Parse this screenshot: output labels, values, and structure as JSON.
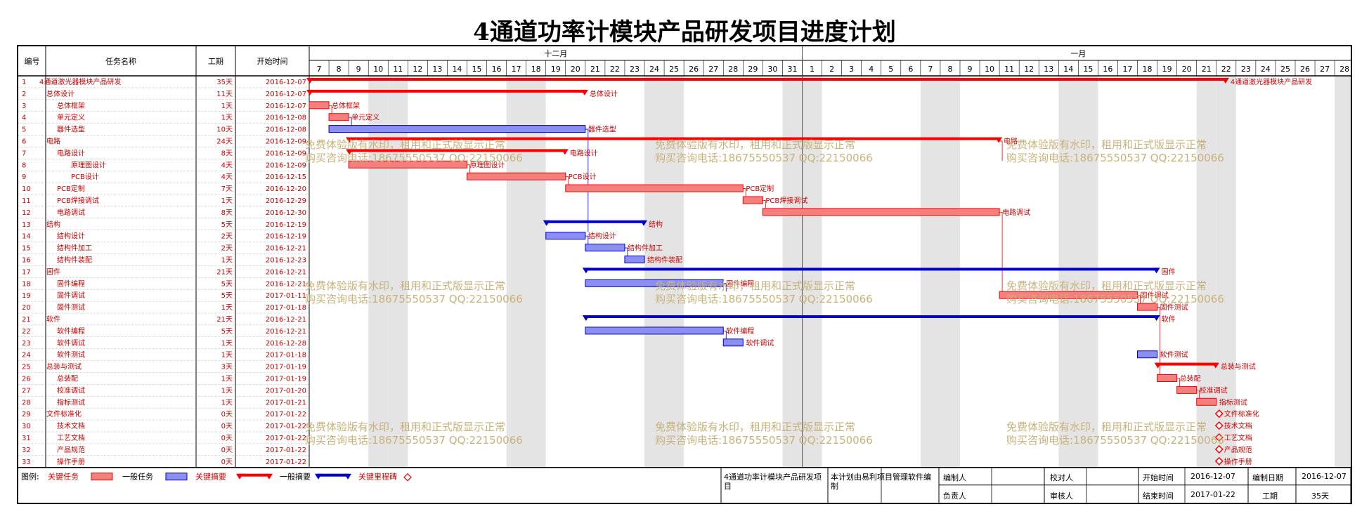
{
  "title": "4通道功率计模块产品研发项目进度计划",
  "headers": {
    "id": "编号",
    "name": "任务名称",
    "duration": "工期",
    "start": "开始时间"
  },
  "months": [
    {
      "label": "十二月",
      "start_day": 0,
      "end_day": 25
    },
    {
      "label": "一月",
      "start_day": 25,
      "end_day": 53
    }
  ],
  "days": [
    "7",
    "8",
    "9",
    "10",
    "11",
    "12",
    "13",
    "14",
    "15",
    "16",
    "17",
    "18",
    "19",
    "20",
    "21",
    "22",
    "23",
    "24",
    "25",
    "26",
    "27",
    "28",
    "29",
    "30",
    "31",
    "1",
    "2",
    "3",
    "4",
    "5",
    "6",
    "7",
    "8",
    "9",
    "10",
    "11",
    "12",
    "13",
    "14",
    "15",
    "16",
    "17",
    "18",
    "19",
    "20",
    "21",
    "22",
    "23",
    "24",
    "25",
    "26",
    "27",
    "28"
  ],
  "tasks": [
    {
      "id": "1",
      "name": "4通道激光器模块产品研发",
      "dur": "35天",
      "start": "2016-12-07",
      "level": 0,
      "type": "summary",
      "s": 0,
      "e": 46.5,
      "color": "red",
      "label": "4通道激光器模块产品研发"
    },
    {
      "id": "2",
      "name": "总体设计",
      "dur": "11天",
      "start": "2016-12-07",
      "level": 1,
      "type": "summary",
      "s": 0,
      "e": 14,
      "color": "red",
      "label": "总体设计"
    },
    {
      "id": "3",
      "name": "总体框架",
      "dur": "1天",
      "start": "2016-12-07",
      "level": 2,
      "type": "task",
      "s": 0,
      "e": 1,
      "color": "red",
      "label": "总体框架"
    },
    {
      "id": "4",
      "name": "单元定义",
      "dur": "1天",
      "start": "2016-12-08",
      "level": 2,
      "type": "task",
      "s": 1,
      "e": 2,
      "color": "red",
      "label": "单元定义"
    },
    {
      "id": "5",
      "name": "器件选型",
      "dur": "10天",
      "start": "2016-12-08",
      "level": 2,
      "type": "task",
      "s": 1,
      "e": 14,
      "color": "blue",
      "label": "器件选型"
    },
    {
      "id": "6",
      "name": "电路",
      "dur": "24天",
      "start": "2016-12-09",
      "level": 1,
      "type": "summary",
      "s": 2,
      "e": 35,
      "color": "red",
      "label": "电路"
    },
    {
      "id": "7",
      "name": "电路设计",
      "dur": "8天",
      "start": "2016-12-09",
      "level": 2,
      "type": "summary",
      "s": 2,
      "e": 13,
      "color": "red",
      "label": "电路设计"
    },
    {
      "id": "8",
      "name": "原理图设计",
      "dur": "4天",
      "start": "2016-12-09",
      "level": 3,
      "type": "task",
      "s": 2,
      "e": 8,
      "color": "red",
      "label": "原理图设计"
    },
    {
      "id": "9",
      "name": "PCB设计",
      "dur": "4天",
      "start": "2016-12-15",
      "level": 3,
      "type": "task",
      "s": 8,
      "e": 13,
      "color": "red",
      "label": "PCB设计"
    },
    {
      "id": "10",
      "name": "PCB定制",
      "dur": "7天",
      "start": "2016-12-20",
      "level": 2,
      "type": "task",
      "s": 13,
      "e": 22,
      "color": "red",
      "label": "PCB定制"
    },
    {
      "id": "11",
      "name": "PCB焊接调试",
      "dur": "1天",
      "start": "2016-12-29",
      "level": 2,
      "type": "task",
      "s": 22,
      "e": 23,
      "color": "red",
      "label": "PCB焊接调试"
    },
    {
      "id": "12",
      "name": "电路调试",
      "dur": "8天",
      "start": "2016-12-30",
      "level": 2,
      "type": "task",
      "s": 23,
      "e": 35,
      "color": "red",
      "label": "电路调试"
    },
    {
      "id": "13",
      "name": "结构",
      "dur": "5天",
      "start": "2016-12-19",
      "level": 1,
      "type": "summary",
      "s": 12,
      "e": 17,
      "color": "blue",
      "label": "结构"
    },
    {
      "id": "14",
      "name": "结构设计",
      "dur": "2天",
      "start": "2016-12-19",
      "level": 2,
      "type": "task",
      "s": 12,
      "e": 14,
      "color": "blue",
      "label": "结构设计"
    },
    {
      "id": "15",
      "name": "结构件加工",
      "dur": "2天",
      "start": "2016-12-21",
      "level": 2,
      "type": "task",
      "s": 14,
      "e": 16,
      "color": "blue",
      "label": "结构件加工"
    },
    {
      "id": "16",
      "name": "结构件装配",
      "dur": "1天",
      "start": "2016-12-23",
      "level": 2,
      "type": "task",
      "s": 16,
      "e": 17,
      "color": "blue",
      "label": "结构件装配"
    },
    {
      "id": "17",
      "name": "固件",
      "dur": "21天",
      "start": "2016-12-21",
      "level": 1,
      "type": "summary",
      "s": 14,
      "e": 43,
      "color": "blue",
      "label": "固件"
    },
    {
      "id": "18",
      "name": "固件编程",
      "dur": "5天",
      "start": "2016-12-21",
      "level": 2,
      "type": "task",
      "s": 14,
      "e": 21,
      "color": "blue",
      "label": "固件编程"
    },
    {
      "id": "19",
      "name": "固件调试",
      "dur": "5天",
      "start": "2017-01-11",
      "level": 2,
      "type": "task",
      "s": 35,
      "e": 42,
      "color": "red",
      "label": "固件调试"
    },
    {
      "id": "20",
      "name": "固件测试",
      "dur": "1天",
      "start": "2017-01-18",
      "level": 2,
      "type": "task",
      "s": 42,
      "e": 43,
      "color": "red",
      "label": "固件测试"
    },
    {
      "id": "21",
      "name": "软件",
      "dur": "21天",
      "start": "2016-12-21",
      "level": 1,
      "type": "summary",
      "s": 14,
      "e": 43,
      "color": "blue",
      "label": "软件"
    },
    {
      "id": "22",
      "name": "软件编程",
      "dur": "5天",
      "start": "2016-12-21",
      "level": 2,
      "type": "task",
      "s": 14,
      "e": 21,
      "color": "blue",
      "label": "软件编程"
    },
    {
      "id": "23",
      "name": "软件调试",
      "dur": "1天",
      "start": "2016-12-28",
      "level": 2,
      "type": "task",
      "s": 21,
      "e": 22,
      "color": "blue",
      "label": "软件调试"
    },
    {
      "id": "24",
      "name": "软件测试",
      "dur": "1天",
      "start": "2017-01-18",
      "level": 2,
      "type": "task",
      "s": 42,
      "e": 43,
      "color": "blue",
      "label": "软件测试"
    },
    {
      "id": "25",
      "name": "总装与测试",
      "dur": "3天",
      "start": "2017-01-19",
      "level": 1,
      "type": "summary",
      "s": 43,
      "e": 46,
      "color": "red",
      "label": "总装与测试"
    },
    {
      "id": "26",
      "name": "总装配",
      "dur": "1天",
      "start": "2017-01-19",
      "level": 2,
      "type": "task",
      "s": 43,
      "e": 44,
      "color": "red",
      "label": "总装配"
    },
    {
      "id": "27",
      "name": "校准调试",
      "dur": "1天",
      "start": "2017-01-20",
      "level": 2,
      "type": "task",
      "s": 44,
      "e": 45,
      "color": "red",
      "label": "校准调试"
    },
    {
      "id": "28",
      "name": "指标测试",
      "dur": "1天",
      "start": "2017-01-21",
      "level": 2,
      "type": "task",
      "s": 45,
      "e": 46,
      "color": "red",
      "label": "指标测试"
    },
    {
      "id": "29",
      "name": "文件标准化",
      "dur": "0天",
      "start": "2017-01-22",
      "level": 1,
      "type": "milestone",
      "s": 46,
      "e": 46,
      "color": "red",
      "label": "文件标准化"
    },
    {
      "id": "30",
      "name": "技术文档",
      "dur": "0天",
      "start": "2017-01-22",
      "level": 2,
      "type": "milestone",
      "s": 46,
      "e": 46,
      "color": "red",
      "label": "技术文档"
    },
    {
      "id": "31",
      "name": "工艺文档",
      "dur": "0天",
      "start": "2017-01-22",
      "level": 2,
      "type": "milestone",
      "s": 46,
      "e": 46,
      "color": "red",
      "label": "工艺文档"
    },
    {
      "id": "32",
      "name": "产品规范",
      "dur": "0天",
      "start": "2017-01-22",
      "level": 2,
      "type": "milestone",
      "s": 46,
      "e": 46,
      "color": "red",
      "label": "产品规范"
    },
    {
      "id": "33",
      "name": "操作手册",
      "dur": "0天",
      "start": "2017-01-22",
      "level": 2,
      "type": "milestone",
      "s": 46,
      "e": 46,
      "color": "red",
      "label": "操作手册"
    }
  ],
  "watermark": {
    "line1": "免费体验版有水印，租用和正式版显示正常",
    "line2": "购买咨询电话:18675550537 QQ:22150066"
  },
  "legend": {
    "title": "图例:",
    "critical_task": "关键任务",
    "normal_task": "一般任务",
    "critical_summary": "关键摘要",
    "normal_summary": "一般摘要",
    "critical_milestone": "关键里程碑"
  },
  "footer": {
    "project_name": "4通道功率计模块产品研发项目",
    "note": "本计划由易利项目管理软件编制",
    "editor_label": "编制人",
    "editor_value": "",
    "checker_label": "校对人",
    "checker_value": "",
    "owner_label": "负责人",
    "owner_value": "",
    "reviewer_label": "审核人",
    "reviewer_value": "",
    "start_label": "开始时间",
    "start_value": "2016-12-07",
    "compile_date_label": "编制日期",
    "compile_date_value": "2016-12-07",
    "end_label": "结束时间",
    "end_value": "2017-01-22",
    "duration_label": "工期",
    "duration_value": "35天"
  },
  "colors": {
    "critical": "#ff0000",
    "normal": "#0000cc",
    "critical_fill": "#f47f7f",
    "normal_fill": "#8a8ff0",
    "weekend": "#e4e4e4",
    "watermark": "#c9b27a"
  }
}
